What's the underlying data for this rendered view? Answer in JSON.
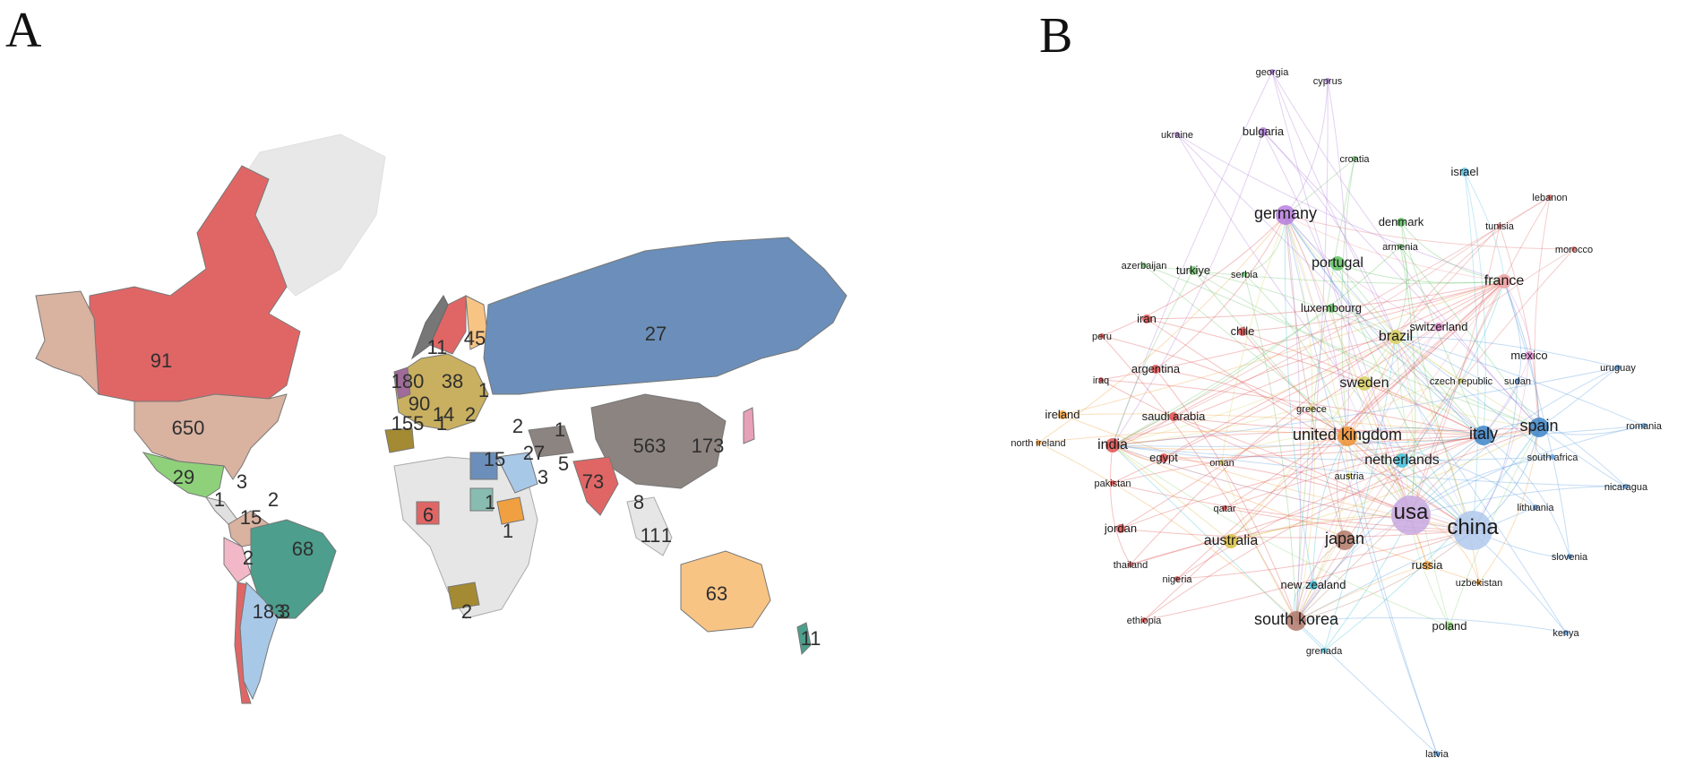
{
  "panels": {
    "a": "A",
    "b": "B"
  },
  "colors": {
    "red": "#e06666",
    "tan": "#d9b2a0",
    "blue": "#6b8fba",
    "slate": "#6f8aab",
    "grey": "#8c8480",
    "green": "#4d9e8c",
    "lightblue": "#a8c8e8",
    "orange": "#f8c484",
    "olive": "#a48a32",
    "lime": "#8ed17a"
  },
  "map_labels": [
    {
      "text": "91",
      "c": "red"
    },
    {
      "text": "650",
      "c": "tan"
    },
    {
      "text": "29",
      "c": "lime"
    },
    {
      "text": "3",
      "c": "none"
    },
    {
      "text": "1",
      "c": "none"
    },
    {
      "text": "2",
      "c": "none"
    },
    {
      "text": "15",
      "c": "tan"
    },
    {
      "text": "2",
      "c": "none"
    },
    {
      "text": "68",
      "c": "green"
    },
    {
      "text": "183",
      "c": "lightblue"
    },
    {
      "text": "3",
      "c": "none"
    },
    {
      "text": "11",
      "c": "slate"
    },
    {
      "text": "45",
      "c": "orange"
    },
    {
      "text": "180",
      "c": "none"
    },
    {
      "text": "38",
      "c": "none"
    },
    {
      "text": "1",
      "c": "none"
    },
    {
      "text": "90",
      "c": "none"
    },
    {
      "text": "155",
      "c": "none"
    },
    {
      "text": "14",
      "c": "none"
    },
    {
      "text": "2",
      "c": "none"
    },
    {
      "text": "1",
      "c": "none"
    },
    {
      "text": "2",
      "c": "none"
    },
    {
      "text": "27",
      "c": "blue"
    },
    {
      "text": "563",
      "c": "grey"
    },
    {
      "text": "173",
      "c": "none"
    },
    {
      "text": "1",
      "c": "blue"
    },
    {
      "text": "15",
      "c": "none"
    },
    {
      "text": "27",
      "c": "grey"
    },
    {
      "text": "3",
      "c": "none"
    },
    {
      "text": "5",
      "c": "none"
    },
    {
      "text": "73",
      "c": "red"
    },
    {
      "text": "6",
      "c": "none"
    },
    {
      "text": "1",
      "c": "none"
    },
    {
      "text": "1",
      "c": "none"
    },
    {
      "text": "8",
      "c": "none"
    },
    {
      "text": "11",
      "c": "none"
    },
    {
      "text": "1",
      "c": "none"
    },
    {
      "text": "2",
      "c": "none"
    },
    {
      "text": "63",
      "c": "orange"
    },
    {
      "text": "11",
      "c": "green"
    }
  ],
  "network_nodes": [
    {
      "label": "georgia",
      "color": "#b07cd8",
      "size": 0
    },
    {
      "label": "cyprus",
      "color": "#b07cd8",
      "size": 0
    },
    {
      "label": "ukraine",
      "color": "#b07cd8",
      "size": 0
    },
    {
      "label": "bulgaria",
      "color": "#b07cd8",
      "size": 1
    },
    {
      "label": "croatia",
      "color": "#6fc46f",
      "size": 0
    },
    {
      "label": "israel",
      "color": "#5ec2e6",
      "size": 1
    },
    {
      "label": "lebanon",
      "color": "#e07070",
      "size": 0
    },
    {
      "label": "germany",
      "color": "#b87ee0",
      "size": 3
    },
    {
      "label": "denmark",
      "color": "#5ec25e",
      "size": 1
    },
    {
      "label": "tunisia",
      "color": "#e07070",
      "size": 0
    },
    {
      "label": "morocco",
      "color": "#e07070",
      "size": 0
    },
    {
      "label": "azerbaijan",
      "color": "#6fc46f",
      "size": 0
    },
    {
      "label": "turkiye",
      "color": "#6fc46f",
      "size": 1
    },
    {
      "label": "serbia",
      "color": "#6fc46f",
      "size": 0
    },
    {
      "label": "portugal",
      "color": "#5ec25e",
      "size": 2
    },
    {
      "label": "armenia",
      "color": "#5ec25e",
      "size": 0
    },
    {
      "label": "france",
      "color": "#f2a0a0",
      "size": 2
    },
    {
      "label": "iran",
      "color": "#e05050",
      "size": 1
    },
    {
      "label": "luxembourg",
      "color": "#6fc46f",
      "size": 1
    },
    {
      "label": "peru",
      "color": "#e05050",
      "size": 0
    },
    {
      "label": "chile",
      "color": "#e05050",
      "size": 1
    },
    {
      "label": "brazil",
      "color": "#d8d060",
      "size": 2
    },
    {
      "label": "switzerland",
      "color": "#e08ad0",
      "size": 1
    },
    {
      "label": "mexico",
      "color": "#e08ad0",
      "size": 1
    },
    {
      "label": "uruguay",
      "color": "#5a9ee0",
      "size": 0
    },
    {
      "label": "argentina",
      "color": "#e05050",
      "size": 1
    },
    {
      "label": "iraq",
      "color": "#e05050",
      "size": 0
    },
    {
      "label": "sweden",
      "color": "#d8d060",
      "size": 2
    },
    {
      "label": "czech republic",
      "color": "#d8d060",
      "size": 0
    },
    {
      "label": "sudan",
      "color": "#5a9ee0",
      "size": 0
    },
    {
      "label": "saudi arabia",
      "color": "#e05050",
      "size": 1
    },
    {
      "label": "greece",
      "color": "#d8d060",
      "size": 0
    },
    {
      "label": "ireland",
      "color": "#f0a040",
      "size": 1
    },
    {
      "label": "united kingdom",
      "color": "#f09030",
      "size": 3
    },
    {
      "label": "italy",
      "color": "#3d85c8",
      "size": 3
    },
    {
      "label": "spain",
      "color": "#3d85c8",
      "size": 3
    },
    {
      "label": "romania",
      "color": "#5a9ee0",
      "size": 0
    },
    {
      "label": "north ireland",
      "color": "#f0a040",
      "size": 0
    },
    {
      "label": "india",
      "color": "#e05050",
      "size": 2
    },
    {
      "label": "egypt",
      "color": "#e05050",
      "size": 1
    },
    {
      "label": "oman",
      "color": "#d8d060",
      "size": 0
    },
    {
      "label": "netherlands",
      "color": "#40c0d8",
      "size": 2
    },
    {
      "label": "south africa",
      "color": "#5a9ee0",
      "size": 0
    },
    {
      "label": "austria",
      "color": "#d8d060",
      "size": 0
    },
    {
      "label": "pakistan",
      "color": "#e05050",
      "size": 0
    },
    {
      "label": "nicaragua",
      "color": "#5a9ee0",
      "size": 0
    },
    {
      "label": "usa",
      "color": "#c8a8e0",
      "size": 5
    },
    {
      "label": "qatar",
      "color": "#e05050",
      "size": 0
    },
    {
      "label": "china",
      "color": "#b0c8ec",
      "size": 5
    },
    {
      "label": "lithuania",
      "color": "#5a9ee0",
      "size": 0
    },
    {
      "label": "jordan",
      "color": "#e05050",
      "size": 1
    },
    {
      "label": "australia",
      "color": "#d8c040",
      "size": 2
    },
    {
      "label": "japan",
      "color": "#b07868",
      "size": 3
    },
    {
      "label": "slovenia",
      "color": "#5a9ee0",
      "size": 0
    },
    {
      "label": "thailand",
      "color": "#e05050",
      "size": 0
    },
    {
      "label": "russia",
      "color": "#f0a040",
      "size": 1
    },
    {
      "label": "nigeria",
      "color": "#e05050",
      "size": 0
    },
    {
      "label": "uzbekistan",
      "color": "#f0a040",
      "size": 0
    },
    {
      "label": "new zealand",
      "color": "#40c0d8",
      "size": 1
    },
    {
      "label": "south korea",
      "color": "#b07868",
      "size": 3
    },
    {
      "label": "poland",
      "color": "#8ed87a",
      "size": 1
    },
    {
      "label": "kenya",
      "color": "#5a9ee0",
      "size": 0
    },
    {
      "label": "ethiopia",
      "color": "#e05050",
      "size": 0
    },
    {
      "label": "grenada",
      "color": "#40c0d8",
      "size": 0
    },
    {
      "label": "latvia",
      "color": "#5a9ee0",
      "size": 0
    }
  ]
}
